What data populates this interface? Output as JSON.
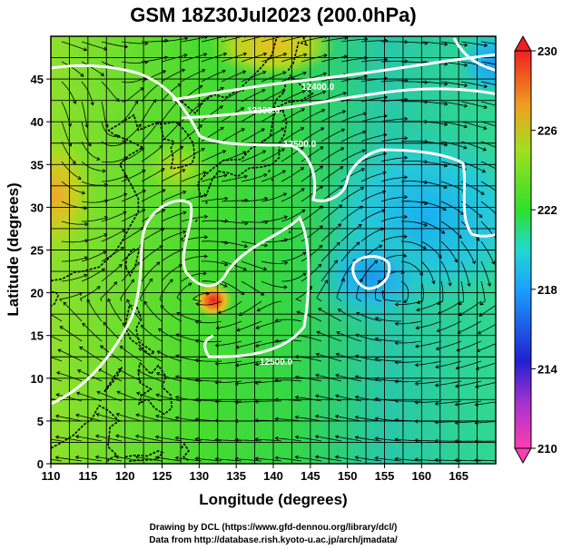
{
  "title": "GSM 18Z30Jul2023 (200.0hPa)",
  "credits": {
    "line1": "Drawing by DCL (https://www.gfd-dennou.org/library/dcl/)",
    "line2": "Data from http://database.rish.kyoto-u.ac.jp/arch/jmadata/"
  },
  "chart_data": {
    "type": "heatmap",
    "title": "GSM 18Z30Jul2023 (200.0hPa)",
    "xlabel": "Longitude (degrees)",
    "ylabel": "Latitude (degrees)",
    "xlim": [
      110,
      170
    ],
    "ylim": [
      0,
      50
    ],
    "x_ticks": [
      "110",
      "115",
      "120",
      "125",
      "130",
      "135",
      "140",
      "145",
      "150",
      "155",
      "160",
      "165"
    ],
    "y_ticks": [
      "0",
      "5",
      "10",
      "15",
      "20",
      "25",
      "30",
      "35",
      "40",
      "45"
    ],
    "colorbar": {
      "range": [
        210,
        230
      ],
      "ticks": [
        "210",
        "214",
        "218",
        "222",
        "226",
        "230"
      ],
      "colors": [
        "#ff3fb0",
        "#2020d0",
        "#1aa0ff",
        "#22d8d0",
        "#2ee02a",
        "#a0e020",
        "#f0a020",
        "#f02020"
      ]
    },
    "grid": true,
    "contour_labels": [
      "12400.0",
      "12300.0",
      "12500.0",
      "12500.0"
    ],
    "features": [
      {
        "name": "typhoon-center",
        "lon": 132,
        "lat": 20.8,
        "value": 229
      },
      {
        "name": "warm-west-edge",
        "lon": 110.5,
        "lat": 34,
        "value": 226
      },
      {
        "name": "cold-low-center",
        "lon": 152,
        "lat": 23.5,
        "value": 217
      }
    ]
  }
}
